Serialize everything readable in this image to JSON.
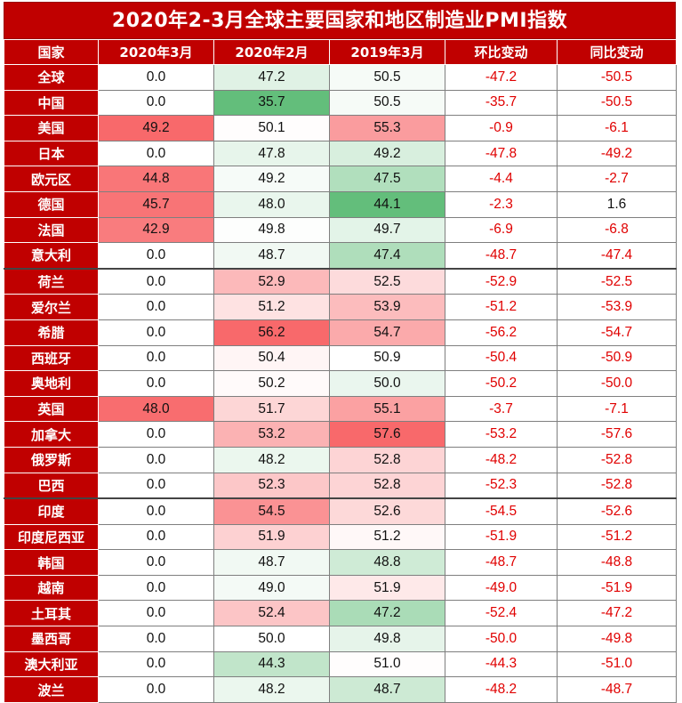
{
  "title": "2020年2-3月全球主要国家和地区制造业PMI指数",
  "colors": {
    "header_bg": "#c00000",
    "header_text": "#ffffff",
    "negative_change": "#e00000",
    "scale_low": "#63be7b",
    "scale_mid": "#ffffff",
    "scale_high": "#f8696b"
  },
  "chart_data": {
    "type": "table",
    "title": "2020年2-3月全球主要国家和地区制造业PMI指数",
    "columns": [
      "国家",
      "2020年3月",
      "2020年2月",
      "2019年3月",
      "环比变动",
      "同比变动"
    ],
    "rows": [
      {
        "country": "全球",
        "mar2020": "0.0",
        "feb2020": "47.2",
        "mar2019": "50.5",
        "mom": "-47.2",
        "yoy": "-50.5"
      },
      {
        "country": "中国",
        "mar2020": "0.0",
        "feb2020": "35.7",
        "mar2019": "50.5",
        "mom": "-35.7",
        "yoy": "-50.5"
      },
      {
        "country": "美国",
        "mar2020": "49.2",
        "feb2020": "50.1",
        "mar2019": "55.3",
        "mom": "-0.9",
        "yoy": "-6.1"
      },
      {
        "country": "日本",
        "mar2020": "0.0",
        "feb2020": "47.8",
        "mar2019": "49.2",
        "mom": "-47.8",
        "yoy": "-49.2"
      },
      {
        "country": "欧元区",
        "mar2020": "44.8",
        "feb2020": "49.2",
        "mar2019": "47.5",
        "mom": "-4.4",
        "yoy": "-2.7"
      },
      {
        "country": "德国",
        "mar2020": "45.7",
        "feb2020": "48.0",
        "mar2019": "44.1",
        "mom": "-2.3",
        "yoy": "1.6"
      },
      {
        "country": "法国",
        "mar2020": "42.9",
        "feb2020": "49.8",
        "mar2019": "49.7",
        "mom": "-6.9",
        "yoy": "-6.8"
      },
      {
        "country": "意大利",
        "mar2020": "0.0",
        "feb2020": "48.7",
        "mar2019": "47.4",
        "mom": "-48.7",
        "yoy": "-47.4"
      },
      {
        "country": "荷兰",
        "mar2020": "0.0",
        "feb2020": "52.9",
        "mar2019": "52.5",
        "mom": "-52.9",
        "yoy": "-52.5"
      },
      {
        "country": "爱尔兰",
        "mar2020": "0.0",
        "feb2020": "51.2",
        "mar2019": "53.9",
        "mom": "-51.2",
        "yoy": "-53.9"
      },
      {
        "country": "希腊",
        "mar2020": "0.0",
        "feb2020": "56.2",
        "mar2019": "54.7",
        "mom": "-56.2",
        "yoy": "-54.7"
      },
      {
        "country": "西班牙",
        "mar2020": "0.0",
        "feb2020": "50.4",
        "mar2019": "50.9",
        "mom": "-50.4",
        "yoy": "-50.9"
      },
      {
        "country": "奥地利",
        "mar2020": "0.0",
        "feb2020": "50.2",
        "mar2019": "50.0",
        "mom": "-50.2",
        "yoy": "-50.0"
      },
      {
        "country": "英国",
        "mar2020": "48.0",
        "feb2020": "51.7",
        "mar2019": "55.1",
        "mom": "-3.7",
        "yoy": "-7.1"
      },
      {
        "country": "加拿大",
        "mar2020": "0.0",
        "feb2020": "53.2",
        "mar2019": "57.6",
        "mom": "-53.2",
        "yoy": "-57.6"
      },
      {
        "country": "俄罗斯",
        "mar2020": "0.0",
        "feb2020": "48.2",
        "mar2019": "52.8",
        "mom": "-48.2",
        "yoy": "-52.8"
      },
      {
        "country": "巴西",
        "mar2020": "0.0",
        "feb2020": "52.3",
        "mar2019": "52.8",
        "mom": "-52.3",
        "yoy": "-52.8"
      },
      {
        "country": "印度",
        "mar2020": "0.0",
        "feb2020": "54.5",
        "mar2019": "52.6",
        "mom": "-54.5",
        "yoy": "-52.6"
      },
      {
        "country": "印度尼西亚",
        "mar2020": "0.0",
        "feb2020": "51.9",
        "mar2019": "51.2",
        "mom": "-51.9",
        "yoy": "-51.2"
      },
      {
        "country": "韩国",
        "mar2020": "0.0",
        "feb2020": "48.7",
        "mar2019": "48.8",
        "mom": "-48.7",
        "yoy": "-48.8"
      },
      {
        "country": "越南",
        "mar2020": "0.0",
        "feb2020": "49.0",
        "mar2019": "51.9",
        "mom": "-49.0",
        "yoy": "-51.9"
      },
      {
        "country": "土耳其",
        "mar2020": "0.0",
        "feb2020": "52.4",
        "mar2019": "47.2",
        "mom": "-52.4",
        "yoy": "-47.2"
      },
      {
        "country": "墨西哥",
        "mar2020": "0.0",
        "feb2020": "50.0",
        "mar2019": "49.8",
        "mom": "-50.0",
        "yoy": "-49.8"
      },
      {
        "country": "澳大利亚",
        "mar2020": "0.0",
        "feb2020": "44.3",
        "mar2019": "51.0",
        "mom": "-44.3",
        "yoy": "-51.0"
      },
      {
        "country": "波兰",
        "mar2020": "0.0",
        "feb2020": "48.2",
        "mar2019": "48.7",
        "mom": "-48.2",
        "yoy": "-48.7"
      }
    ]
  }
}
